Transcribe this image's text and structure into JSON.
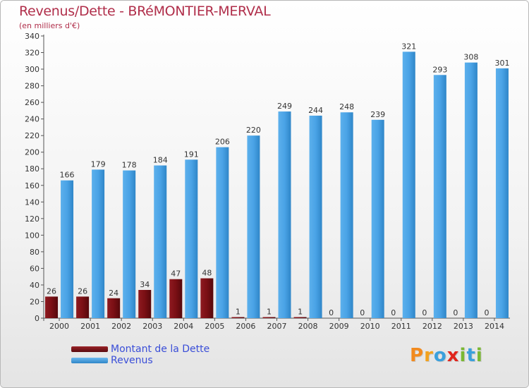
{
  "title": "Revenus/Dette - BRéMONTIER-MERVAL",
  "subtitle": "(en milliers d'€)",
  "colors": {
    "debt": "#7a0f14",
    "revenue": "#4aa3e6",
    "title": "#b02e4a",
    "legend_text": "#3a4ed8"
  },
  "legend": [
    {
      "label": "Montant de la Dette",
      "color": "#7a0f14"
    },
    {
      "label": "Revenus",
      "color": "#4aa3e6"
    }
  ],
  "logo": {
    "text": "Proxiti"
  },
  "chart_data": {
    "type": "bar",
    "title": "Revenus/Dette - BRéMONTIER-MERVAL",
    "ylabel": "(en milliers d'€)",
    "xlabel": "",
    "ylim": [
      0,
      340
    ],
    "ytick_step": 20,
    "grid": false,
    "categories": [
      "2000",
      "2001",
      "2002",
      "2003",
      "2004",
      "2005",
      "2006",
      "2007",
      "2008",
      "2009",
      "2010",
      "2011",
      "2012",
      "2013",
      "2014"
    ],
    "series": [
      {
        "name": "Montant de la Dette",
        "color": "#7a0f14",
        "values": [
          26,
          26,
          24,
          34,
          47,
          48,
          1,
          1,
          1,
          0,
          0,
          0,
          0,
          0,
          0
        ]
      },
      {
        "name": "Revenus",
        "color": "#4aa3e6",
        "values": [
          166,
          179,
          178,
          184,
          191,
          206,
          220,
          249,
          244,
          248,
          239,
          321,
          293,
          308,
          301
        ]
      }
    ]
  }
}
